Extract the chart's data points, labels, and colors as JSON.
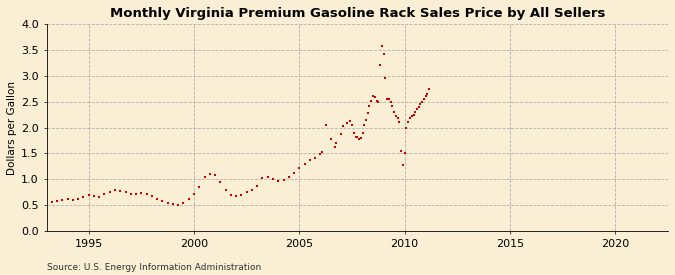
{
  "title": "Monthly Virginia Premium Gasoline Rack Sales Price by All Sellers",
  "ylabel": "Dollars per Gallon",
  "source": "Source: U.S. Energy Information Administration",
  "background_color": "#faefd4",
  "plot_bg_color": "#faefd4",
  "line_color": "#cc0000",
  "xlim": [
    1993.0,
    2022.5
  ],
  "ylim": [
    0.0,
    4.0
  ],
  "yticks": [
    0.0,
    0.5,
    1.0,
    1.5,
    2.0,
    2.5,
    3.0,
    3.5,
    4.0
  ],
  "xticks": [
    1995,
    2000,
    2005,
    2010,
    2015,
    2020
  ],
  "data": [
    [
      1993.25,
      0.56
    ],
    [
      1993.5,
      0.58
    ],
    [
      1993.75,
      0.6
    ],
    [
      1994.0,
      0.62
    ],
    [
      1994.25,
      0.6
    ],
    [
      1994.5,
      0.62
    ],
    [
      1994.75,
      0.65
    ],
    [
      1995.0,
      0.7
    ],
    [
      1995.25,
      0.68
    ],
    [
      1995.5,
      0.66
    ],
    [
      1995.75,
      0.72
    ],
    [
      1996.0,
      0.75
    ],
    [
      1996.25,
      0.8
    ],
    [
      1996.5,
      0.78
    ],
    [
      1996.75,
      0.76
    ],
    [
      1997.0,
      0.72
    ],
    [
      1997.25,
      0.72
    ],
    [
      1997.5,
      0.74
    ],
    [
      1997.75,
      0.72
    ],
    [
      1998.0,
      0.68
    ],
    [
      1998.25,
      0.62
    ],
    [
      1998.5,
      0.58
    ],
    [
      1998.75,
      0.55
    ],
    [
      1999.0,
      0.52
    ],
    [
      1999.25,
      0.5
    ],
    [
      1999.5,
      0.55
    ],
    [
      1999.75,
      0.62
    ],
    [
      2000.0,
      0.72
    ],
    [
      2000.25,
      0.85
    ],
    [
      2000.5,
      1.05
    ],
    [
      2000.75,
      1.1
    ],
    [
      2001.0,
      1.08
    ],
    [
      2001.25,
      0.95
    ],
    [
      2001.5,
      0.8
    ],
    [
      2001.75,
      0.7
    ],
    [
      2002.0,
      0.68
    ],
    [
      2002.25,
      0.7
    ],
    [
      2002.5,
      0.75
    ],
    [
      2002.75,
      0.8
    ],
    [
      2003.0,
      0.88
    ],
    [
      2003.25,
      1.02
    ],
    [
      2003.5,
      1.05
    ],
    [
      2003.75,
      1.0
    ],
    [
      2004.0,
      0.96
    ],
    [
      2004.25,
      0.98
    ],
    [
      2004.5,
      1.05
    ],
    [
      2004.75,
      1.12
    ],
    [
      2005.0,
      1.22
    ],
    [
      2005.25,
      1.3
    ],
    [
      2005.5,
      1.38
    ],
    [
      2005.75,
      1.42
    ],
    [
      2006.0,
      1.48
    ],
    [
      2006.08,
      1.52
    ],
    [
      2006.25,
      2.05
    ],
    [
      2006.5,
      1.78
    ],
    [
      2006.67,
      1.62
    ],
    [
      2006.75,
      1.7
    ],
    [
      2007.0,
      1.88
    ],
    [
      2007.08,
      2.02
    ],
    [
      2007.25,
      2.08
    ],
    [
      2007.42,
      2.12
    ],
    [
      2007.5,
      2.05
    ],
    [
      2007.58,
      1.9
    ],
    [
      2007.67,
      1.82
    ],
    [
      2007.75,
      1.82
    ],
    [
      2007.83,
      1.78
    ],
    [
      2007.92,
      1.8
    ],
    [
      2008.0,
      1.9
    ],
    [
      2008.08,
      2.05
    ],
    [
      2008.17,
      2.15
    ],
    [
      2008.25,
      2.28
    ],
    [
      2008.33,
      2.42
    ],
    [
      2008.42,
      2.52
    ],
    [
      2008.5,
      2.6
    ],
    [
      2008.58,
      2.58
    ],
    [
      2008.67,
      2.52
    ],
    [
      2008.75,
      2.5
    ],
    [
      2008.83,
      3.2
    ],
    [
      2008.92,
      3.58
    ],
    [
      2009.0,
      3.42
    ],
    [
      2009.08,
      2.95
    ],
    [
      2009.17,
      2.55
    ],
    [
      2009.25,
      2.55
    ],
    [
      2009.33,
      2.5
    ],
    [
      2009.42,
      2.42
    ],
    [
      2009.5,
      2.3
    ],
    [
      2009.58,
      2.22
    ],
    [
      2009.67,
      2.18
    ],
    [
      2009.75,
      2.1
    ],
    [
      2009.83,
      1.55
    ],
    [
      2009.92,
      1.28
    ],
    [
      2010.0,
      1.5
    ],
    [
      2010.08,
      2.0
    ],
    [
      2010.17,
      2.1
    ],
    [
      2010.25,
      2.18
    ],
    [
      2010.33,
      2.22
    ],
    [
      2010.42,
      2.25
    ],
    [
      2010.5,
      2.3
    ],
    [
      2010.58,
      2.35
    ],
    [
      2010.67,
      2.4
    ],
    [
      2010.75,
      2.45
    ],
    [
      2010.83,
      2.5
    ],
    [
      2010.92,
      2.55
    ],
    [
      2011.0,
      2.6
    ],
    [
      2011.08,
      2.65
    ],
    [
      2011.17,
      2.75
    ]
  ]
}
